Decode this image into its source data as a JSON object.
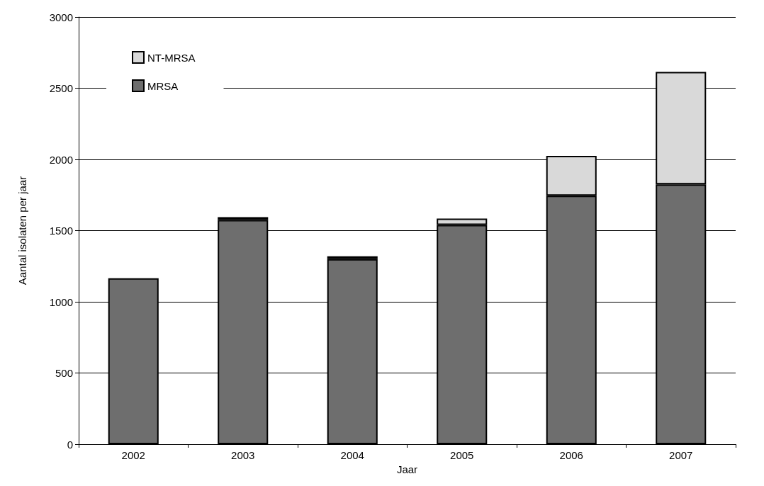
{
  "chart_data": {
    "type": "bar",
    "stacked": true,
    "xlabel": "Jaar",
    "ylabel": "Aantal isolaten per jaar",
    "categories": [
      "2002",
      "2003",
      "2004",
      "2005",
      "2006",
      "2007"
    ],
    "series": [
      {
        "name": "MRSA",
        "color": "#6e6e6e",
        "values": [
          1165,
          1575,
          1300,
          1540,
          1745,
          1825
        ]
      },
      {
        "name": "NT-MRSA",
        "color": "#d9d9d9",
        "values": [
          null,
          20,
          20,
          45,
          280,
          790
        ]
      }
    ],
    "ylim": [
      0,
      3000
    ],
    "yticks": [
      0,
      500,
      1000,
      1500,
      2000,
      2500,
      3000
    ],
    "grid": "y",
    "legend": "top left"
  }
}
